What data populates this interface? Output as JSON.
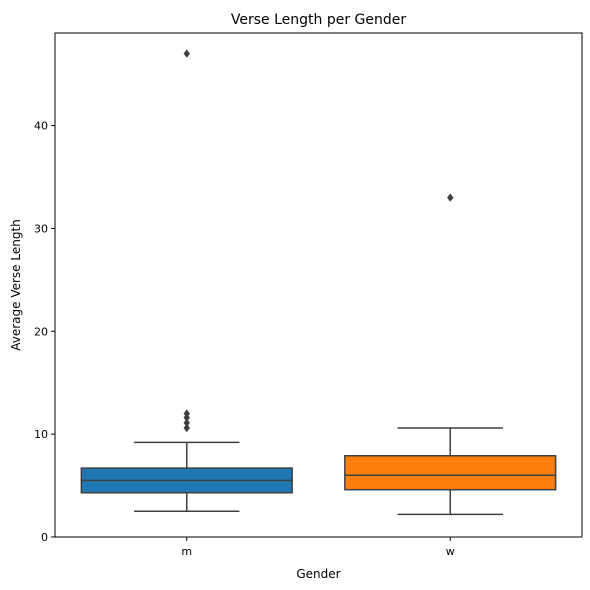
{
  "chart_data": {
    "type": "box",
    "title": "Verse Length per Gender",
    "xlabel": "Gender",
    "ylabel": "Average Verse Length",
    "ylim": [
      0,
      49
    ],
    "yticks": [
      0,
      10,
      20,
      30,
      40
    ],
    "grid": false,
    "categories": [
      "m",
      "w"
    ],
    "boxes": [
      {
        "category": "m",
        "color": "#1f77b4",
        "whisker_low": 2.5,
        "q1": 4.3,
        "median": 5.5,
        "q3": 6.7,
        "whisker_high": 9.2,
        "outliers": [
          10.6,
          11.1,
          11.6,
          12.0,
          47.0
        ]
      },
      {
        "category": "w",
        "color": "#ff7f0e",
        "whisker_low": 2.2,
        "q1": 4.6,
        "median": 6.0,
        "q3": 7.9,
        "whisker_high": 10.6,
        "outliers": [
          33.0
        ]
      }
    ]
  }
}
